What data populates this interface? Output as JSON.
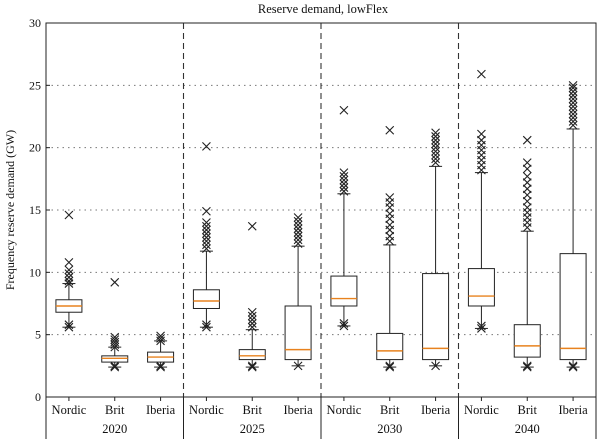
{
  "chart_data": {
    "type": "box",
    "title": "Reserve demand, lowFlex",
    "ylabel": "Frequency reserve demand (GW)",
    "xlabel": "",
    "ylim": [
      0,
      30
    ],
    "yticks": [
      0,
      5,
      10,
      15,
      20,
      25,
      30
    ],
    "grid": "horizontal-dotted",
    "groups": [
      {
        "label": "2020",
        "boxes": [
          {
            "category": "Nordic",
            "whisker_low": 5.6,
            "q1": 6.8,
            "median": 7.3,
            "q3": 7.8,
            "whisker_high": 9.1,
            "fliers": [
              5.6,
              5.8,
              9.1,
              9.3,
              9.6,
              9.9,
              10.2,
              10.8,
              14.6
            ]
          },
          {
            "category": "Brit",
            "whisker_low": 2.4,
            "q1": 2.8,
            "median": 3.1,
            "q3": 3.3,
            "whisker_high": 4.0,
            "fliers": [
              2.4,
              2.5,
              4.0,
              4.2,
              4.4,
              4.6,
              4.8,
              9.2
            ]
          },
          {
            "category": "Iberia",
            "whisker_low": 2.4,
            "q1": 2.8,
            "median": 3.2,
            "q3": 3.6,
            "whisker_high": 4.5,
            "fliers": [
              2.4,
              2.5,
              4.5,
              4.7,
              4.9
            ]
          }
        ]
      },
      {
        "label": "2025",
        "boxes": [
          {
            "category": "Nordic",
            "whisker_low": 5.6,
            "q1": 7.1,
            "median": 7.7,
            "q3": 8.6,
            "whisker_high": 11.7,
            "fliers": [
              5.6,
              5.8,
              11.9,
              12.2,
              12.5,
              12.8,
              13.1,
              13.4,
              13.7,
              14.0,
              14.9,
              20.1
            ]
          },
          {
            "category": "Brit",
            "whisker_low": 2.4,
            "q1": 3.0,
            "median": 3.3,
            "q3": 3.8,
            "whisker_high": 5.4,
            "fliers": [
              2.4,
              2.5,
              5.6,
              5.9,
              6.2,
              6.5,
              6.8,
              13.7
            ]
          },
          {
            "category": "Iberia",
            "whisker_low": 2.5,
            "q1": 3.0,
            "median": 3.8,
            "q3": 7.3,
            "whisker_high": 12.1,
            "fliers": [
              2.5,
              12.3,
              12.6,
              12.9,
              13.2,
              13.5,
              13.8,
              14.1,
              14.4
            ]
          }
        ]
      },
      {
        "label": "2030",
        "boxes": [
          {
            "category": "Nordic",
            "whisker_low": 5.7,
            "q1": 7.3,
            "median": 7.9,
            "q3": 9.7,
            "whisker_high": 16.3,
            "fliers": [
              5.7,
              5.9,
              16.5,
              16.8,
              17.1,
              17.4,
              17.7,
              18.0,
              23.0
            ]
          },
          {
            "category": "Brit",
            "whisker_low": 2.4,
            "q1": 3.0,
            "median": 3.7,
            "q3": 5.1,
            "whisker_high": 12.2,
            "fliers": [
              2.4,
              2.5,
              12.5,
              12.9,
              13.4,
              13.8,
              14.3,
              14.7,
              15.2,
              15.6,
              16.0,
              21.4
            ]
          },
          {
            "category": "Iberia",
            "whisker_low": 2.5,
            "q1": 3.0,
            "median": 3.9,
            "q3": 9.9,
            "whisker_high": 18.5,
            "fliers": [
              2.5,
              18.8,
              19.1,
              19.4,
              19.7,
              20.0,
              20.3,
              20.6,
              20.9,
              21.2
            ]
          }
        ]
      },
      {
        "label": "2040",
        "boxes": [
          {
            "category": "Nordic",
            "whisker_low": 5.5,
            "q1": 7.3,
            "median": 8.1,
            "q3": 10.3,
            "whisker_high": 18.0,
            "fliers": [
              5.5,
              5.7,
              18.2,
              18.6,
              19.0,
              19.4,
              19.8,
              20.2,
              20.6,
              21.1,
              25.9
            ]
          },
          {
            "category": "Brit",
            "whisker_low": 2.4,
            "q1": 3.2,
            "median": 4.1,
            "q3": 5.8,
            "whisker_high": 13.3,
            "fliers": [
              2.4,
              2.5,
              13.6,
              14.0,
              14.4,
              14.8,
              15.2,
              15.7,
              16.2,
              16.7,
              17.2,
              17.7,
              18.3,
              18.8,
              20.6
            ]
          },
          {
            "category": "Iberia",
            "whisker_low": 2.4,
            "q1": 3.0,
            "median": 3.9,
            "q3": 11.5,
            "whisker_high": 21.5,
            "fliers": [
              2.4,
              2.5,
              21.8,
              22.1,
              22.4,
              22.7,
              23.0,
              23.3,
              23.6,
              23.9,
              24.2,
              24.5,
              24.8,
              25.0
            ]
          }
        ]
      }
    ]
  }
}
